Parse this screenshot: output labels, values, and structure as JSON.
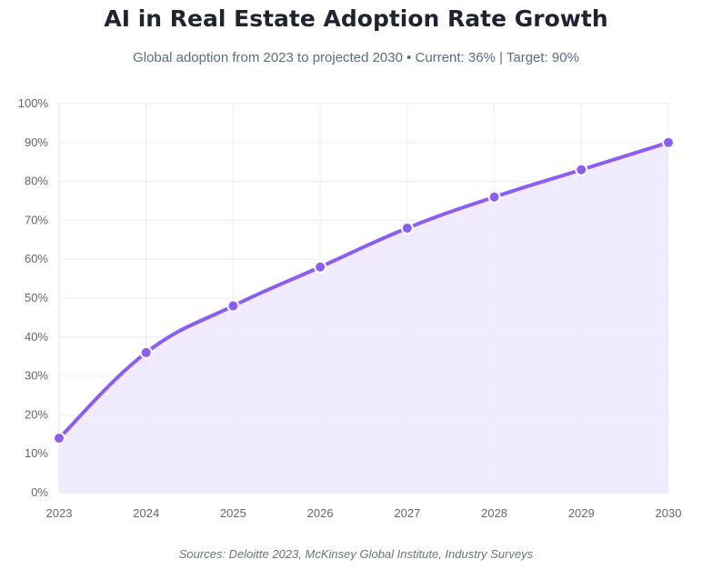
{
  "chart_data": {
    "type": "area",
    "title": "AI in Real Estate Adoption Rate Growth",
    "subtitle": "Global adoption from 2023 to projected 2030 • Current: 36% | Target: 90%",
    "source": "Sources: Deloitte 2023, McKinsey Global Institute, Industry Surveys",
    "categories": [
      "2023",
      "2024",
      "2025",
      "2026",
      "2027",
      "2028",
      "2029",
      "2030"
    ],
    "series": [
      {
        "name": "Adoption Rate",
        "values": [
          14,
          36,
          48,
          58,
          68,
          76,
          83,
          90
        ]
      }
    ],
    "ylim": [
      0,
      100
    ],
    "ytick_step": 10,
    "ytick_suffix": "%",
    "grid": true,
    "legend": "none",
    "colors": {
      "line": "#8b5cf6",
      "fill": "#ede7fe",
      "grid": "#ececf1",
      "marker_stroke": "#ffffff"
    }
  }
}
